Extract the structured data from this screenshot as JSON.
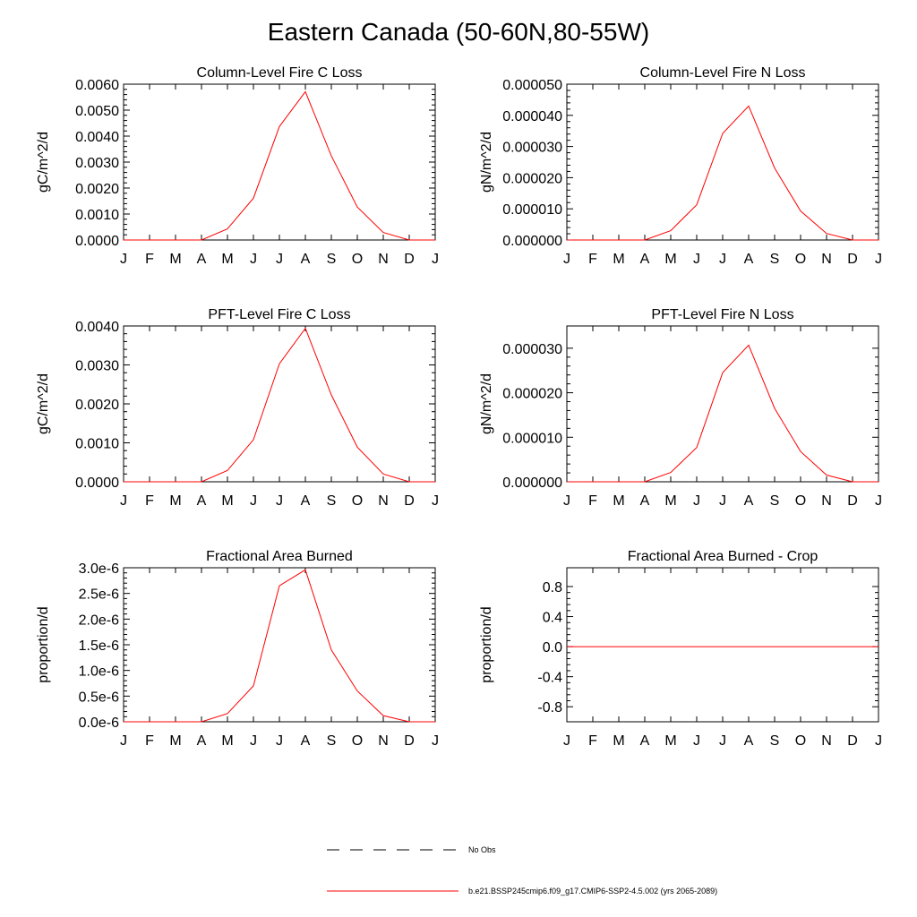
{
  "page": {
    "title": "Eastern Canada (50-60N,80-55W)"
  },
  "colors": {
    "model_line": "#ff0000",
    "obs_line": "#000000"
  },
  "legend": {
    "obs_label": "No Obs",
    "model_label": "b.e21.BSSP245cmip6.f09_g17.CMIP6-SSP2-4.5.002 (yrs 2065-2089)"
  },
  "chart_data": [
    {
      "type": "line",
      "title": "Column-Level Fire C Loss",
      "ylabel": "gC/m^2/d",
      "categories": [
        "J",
        "F",
        "M",
        "A",
        "M",
        "J",
        "J",
        "A",
        "S",
        "O",
        "N",
        "D",
        "J"
      ],
      "ylim": [
        0,
        0.006
      ],
      "yticks": [
        0,
        0.001,
        0.002,
        0.003,
        0.004,
        0.005,
        0.006
      ],
      "yticklabels": [
        "0.0000",
        "0.0010",
        "0.0020",
        "0.0030",
        "0.0040",
        "0.0050",
        "0.0060"
      ],
      "values": [
        0,
        0,
        0,
        0,
        0.00043,
        0.00161,
        0.00437,
        0.00571,
        0.00324,
        0.00127,
        0.00029,
        0,
        0
      ]
    },
    {
      "type": "line",
      "title": "Column-Level Fire N Loss",
      "ylabel": "gN/m^2/d",
      "categories": [
        "J",
        "F",
        "M",
        "A",
        "M",
        "J",
        "J",
        "A",
        "S",
        "O",
        "N",
        "D",
        "J"
      ],
      "ylim": [
        0,
        5e-05
      ],
      "yticks": [
        0,
        1e-05,
        2e-05,
        3e-05,
        4e-05,
        5e-05
      ],
      "yticklabels": [
        "0.000000",
        "0.000010",
        "0.000020",
        "0.000030",
        "0.000040",
        "0.000050"
      ],
      "values": [
        0,
        0,
        0,
        0,
        3e-06,
        1.13e-05,
        3.42e-05,
        4.3e-05,
        2.31e-05,
        9.3e-06,
        2.1e-06,
        0,
        0
      ]
    },
    {
      "type": "line",
      "title": "PFT-Level Fire C Loss",
      "ylabel": "gC/m^2/d",
      "categories": [
        "J",
        "F",
        "M",
        "A",
        "M",
        "J",
        "J",
        "A",
        "S",
        "O",
        "N",
        "D",
        "J"
      ],
      "ylim": [
        0,
        0.004
      ],
      "yticks": [
        0,
        0.001,
        0.002,
        0.003,
        0.004
      ],
      "yticklabels": [
        "0.0000",
        "0.0010",
        "0.0020",
        "0.0030",
        "0.0040"
      ],
      "values": [
        0,
        0,
        0,
        0,
        0.00029,
        0.00108,
        0.00303,
        0.00394,
        0.00223,
        0.00089,
        0.0002,
        0,
        0
      ]
    },
    {
      "type": "line",
      "title": "PFT-Level Fire N Loss",
      "ylabel": "gN/m^2/d",
      "categories": [
        "J",
        "F",
        "M",
        "A",
        "M",
        "J",
        "J",
        "A",
        "S",
        "O",
        "N",
        "D",
        "J"
      ],
      "ylim": [
        0,
        3.5e-05
      ],
      "yticks": [
        0,
        1e-05,
        2e-05,
        3e-05
      ],
      "yticklabels": [
        "0.000000",
        "0.000010",
        "0.000020",
        "0.000030"
      ],
      "values": [
        0,
        0,
        0,
        0,
        2.1e-06,
        7.7e-06,
        2.45e-05,
        3.07e-05,
        1.65e-05,
        6.8e-06,
        1.5e-06,
        0,
        0
      ]
    },
    {
      "type": "line",
      "title": "Fractional Area Burned",
      "ylabel": "proportion/d",
      "categories": [
        "J",
        "F",
        "M",
        "A",
        "M",
        "J",
        "J",
        "A",
        "S",
        "O",
        "N",
        "D",
        "J"
      ],
      "ylim": [
        0,
        3e-06
      ],
      "yticks": [
        0,
        5e-07,
        1e-06,
        1.5e-06,
        2e-06,
        2.5e-06,
        3e-06
      ],
      "yticklabels": [
        "0.0e-6",
        "0.5e-6",
        "1.0e-6",
        "1.5e-6",
        "2.0e-6",
        "2.5e-6",
        "3.0e-6"
      ],
      "values": [
        0,
        0,
        0,
        0,
        1.6e-07,
        7e-07,
        2.65e-06,
        2.96e-06,
        1.4e-06,
        6e-07,
        1.2e-07,
        0,
        0
      ]
    },
    {
      "type": "line",
      "title": "Fractional Area Burned - Crop",
      "ylabel": "proportion/d",
      "categories": [
        "J",
        "F",
        "M",
        "A",
        "M",
        "J",
        "J",
        "A",
        "S",
        "O",
        "N",
        "D",
        "J"
      ],
      "ylim": [
        -1,
        1.05
      ],
      "yticks": [
        -0.8,
        -0.4,
        0,
        0.4,
        0.8
      ],
      "yticklabels": [
        "-0.8",
        "-0.4",
        "0.0",
        "0.4",
        "0.8"
      ],
      "values": [
        0,
        0,
        0,
        0,
        0,
        0,
        0,
        0,
        0,
        0,
        0,
        0,
        0
      ]
    }
  ]
}
